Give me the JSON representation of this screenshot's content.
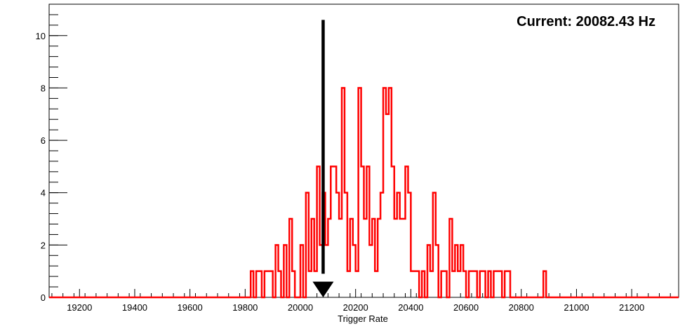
{
  "chart_data": {
    "type": "histogram",
    "title": "",
    "xlabel": "Trigger Rate",
    "ylabel": "",
    "xlim": [
      19090,
      21370
    ],
    "ylim": [
      0,
      11.2
    ],
    "x_ticks": [
      19200,
      19400,
      19600,
      19800,
      20000,
      20200,
      20400,
      20600,
      20800,
      21000,
      21200
    ],
    "y_ticks": [
      0,
      2,
      4,
      6,
      8,
      10
    ],
    "grid": false,
    "bin_width": 10,
    "series": [
      {
        "color": "#ff0000",
        "bins": [
          [
            19820,
            1
          ],
          [
            19830,
            0
          ],
          [
            19840,
            1
          ],
          [
            19850,
            1
          ],
          [
            19860,
            0
          ],
          [
            19870,
            1
          ],
          [
            19880,
            1
          ],
          [
            19890,
            1
          ],
          [
            19900,
            0
          ],
          [
            19910,
            2
          ],
          [
            19920,
            1
          ],
          [
            19930,
            0
          ],
          [
            19940,
            2
          ],
          [
            19950,
            0
          ],
          [
            19960,
            3
          ],
          [
            19970,
            1
          ],
          [
            19980,
            0
          ],
          [
            19990,
            0
          ],
          [
            20000,
            2
          ],
          [
            20010,
            0
          ],
          [
            20020,
            4
          ],
          [
            20030,
            1
          ],
          [
            20040,
            3
          ],
          [
            20050,
            1
          ],
          [
            20060,
            5
          ],
          [
            20070,
            2
          ],
          [
            20080,
            4
          ],
          [
            20090,
            2
          ],
          [
            20100,
            3
          ],
          [
            20110,
            5
          ],
          [
            20120,
            5
          ],
          [
            20130,
            4
          ],
          [
            20140,
            3
          ],
          [
            20150,
            8
          ],
          [
            20160,
            4
          ],
          [
            20170,
            1
          ],
          [
            20180,
            3
          ],
          [
            20190,
            2
          ],
          [
            20200,
            1
          ],
          [
            20210,
            8
          ],
          [
            20220,
            5
          ],
          [
            20230,
            3
          ],
          [
            20240,
            5
          ],
          [
            20250,
            2
          ],
          [
            20260,
            3
          ],
          [
            20270,
            1
          ],
          [
            20280,
            3
          ],
          [
            20290,
            4
          ],
          [
            20300,
            8
          ],
          [
            20310,
            7
          ],
          [
            20320,
            8
          ],
          [
            20330,
            5
          ],
          [
            20340,
            3
          ],
          [
            20350,
            4
          ],
          [
            20360,
            3
          ],
          [
            20370,
            3
          ],
          [
            20380,
            5
          ],
          [
            20390,
            4
          ],
          [
            20400,
            1
          ],
          [
            20410,
            1
          ],
          [
            20420,
            1
          ],
          [
            20430,
            0
          ],
          [
            20440,
            1
          ],
          [
            20450,
            0
          ],
          [
            20460,
            2
          ],
          [
            20470,
            1
          ],
          [
            20480,
            4
          ],
          [
            20490,
            2
          ],
          [
            20500,
            0
          ],
          [
            20510,
            1
          ],
          [
            20520,
            1
          ],
          [
            20530,
            0
          ],
          [
            20540,
            3
          ],
          [
            20550,
            1
          ],
          [
            20560,
            2
          ],
          [
            20570,
            1
          ],
          [
            20580,
            2
          ],
          [
            20590,
            1
          ],
          [
            20600,
            0
          ],
          [
            20610,
            1
          ],
          [
            20620,
            1
          ],
          [
            20630,
            1
          ],
          [
            20640,
            0
          ],
          [
            20650,
            1
          ],
          [
            20660,
            1
          ],
          [
            20670,
            0
          ],
          [
            20680,
            1
          ],
          [
            20690,
            0
          ],
          [
            20700,
            1
          ],
          [
            20710,
            1
          ],
          [
            20720,
            1
          ],
          [
            20730,
            0
          ],
          [
            20740,
            1
          ],
          [
            20750,
            1
          ],
          [
            20880,
            1
          ]
        ]
      }
    ],
    "marker": {
      "x": 20082.43,
      "label": "Current: 20082.43 Hz",
      "color": "#000000"
    }
  }
}
